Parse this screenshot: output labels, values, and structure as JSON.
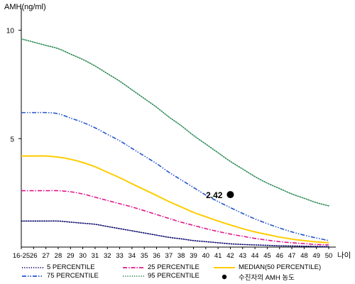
{
  "chart_data": {
    "type": "line",
    "ylabel": "AMH(ng/ml)",
    "xlabel": "나이",
    "categories": [
      "16-25",
      "26",
      "27",
      "28",
      "29",
      "30",
      "31",
      "32",
      "33",
      "34",
      "35",
      "36",
      "37",
      "38",
      "39",
      "40",
      "41",
      "42",
      "43",
      "44",
      "45",
      "46",
      "47",
      "48",
      "49",
      "50"
    ],
    "y_ticks": [
      5,
      10
    ],
    "ylim": [
      0,
      11
    ],
    "series": [
      {
        "name": "5 PERCENTILE",
        "color": "#0a0a6e",
        "dash": "dotted",
        "values": [
          1.2,
          1.2,
          1.2,
          1.2,
          1.15,
          1.1,
          1.05,
          0.95,
          0.85,
          0.75,
          0.65,
          0.55,
          0.45,
          0.38,
          0.3,
          0.25,
          0.2,
          0.15,
          0.12,
          0.1,
          0.08,
          0.06,
          0.05,
          0.04,
          0.03,
          0.02
        ]
      },
      {
        "name": "25 PERCENTILE",
        "color": "#e0188a",
        "dash": "dashdot",
        "values": [
          2.6,
          2.6,
          2.6,
          2.6,
          2.55,
          2.45,
          2.3,
          2.15,
          2.0,
          1.85,
          1.68,
          1.5,
          1.32,
          1.15,
          1.0,
          0.85,
          0.72,
          0.6,
          0.5,
          0.4,
          0.32,
          0.25,
          0.2,
          0.16,
          0.12,
          0.1
        ]
      },
      {
        "name": "MEDIAN(50 PERCENTILE)",
        "color": "#ffcc00",
        "dash": "solid",
        "values": [
          4.2,
          4.2,
          4.2,
          4.15,
          4.05,
          3.9,
          3.7,
          3.45,
          3.2,
          2.92,
          2.65,
          2.38,
          2.1,
          1.85,
          1.6,
          1.4,
          1.2,
          1.02,
          0.85,
          0.7,
          0.58,
          0.46,
          0.37,
          0.3,
          0.24,
          0.2
        ]
      },
      {
        "name": "75 PERCENTILE",
        "color": "#2255cc",
        "dash": "dashdotdot",
        "values": [
          6.2,
          6.2,
          6.2,
          6.15,
          5.95,
          5.75,
          5.5,
          5.2,
          4.9,
          4.55,
          4.2,
          3.85,
          3.45,
          3.1,
          2.75,
          2.4,
          2.1,
          1.82,
          1.55,
          1.3,
          1.08,
          0.88,
          0.7,
          0.55,
          0.42,
          0.3
        ]
      },
      {
        "name": "95 PERCENTILE",
        "color": "#2e8b57",
        "dash": "dotted",
        "values": [
          9.6,
          9.45,
          9.3,
          9.15,
          8.9,
          8.65,
          8.35,
          8.0,
          7.65,
          7.25,
          6.85,
          6.45,
          6.0,
          5.6,
          5.15,
          4.75,
          4.35,
          3.95,
          3.6,
          3.25,
          2.95,
          2.7,
          2.45,
          2.25,
          2.05,
          1.9
        ]
      }
    ],
    "point": {
      "name": "수진자의 AMH 농도",
      "category": "42",
      "value": 2.42,
      "label": "2.42",
      "color": "#000000"
    }
  }
}
